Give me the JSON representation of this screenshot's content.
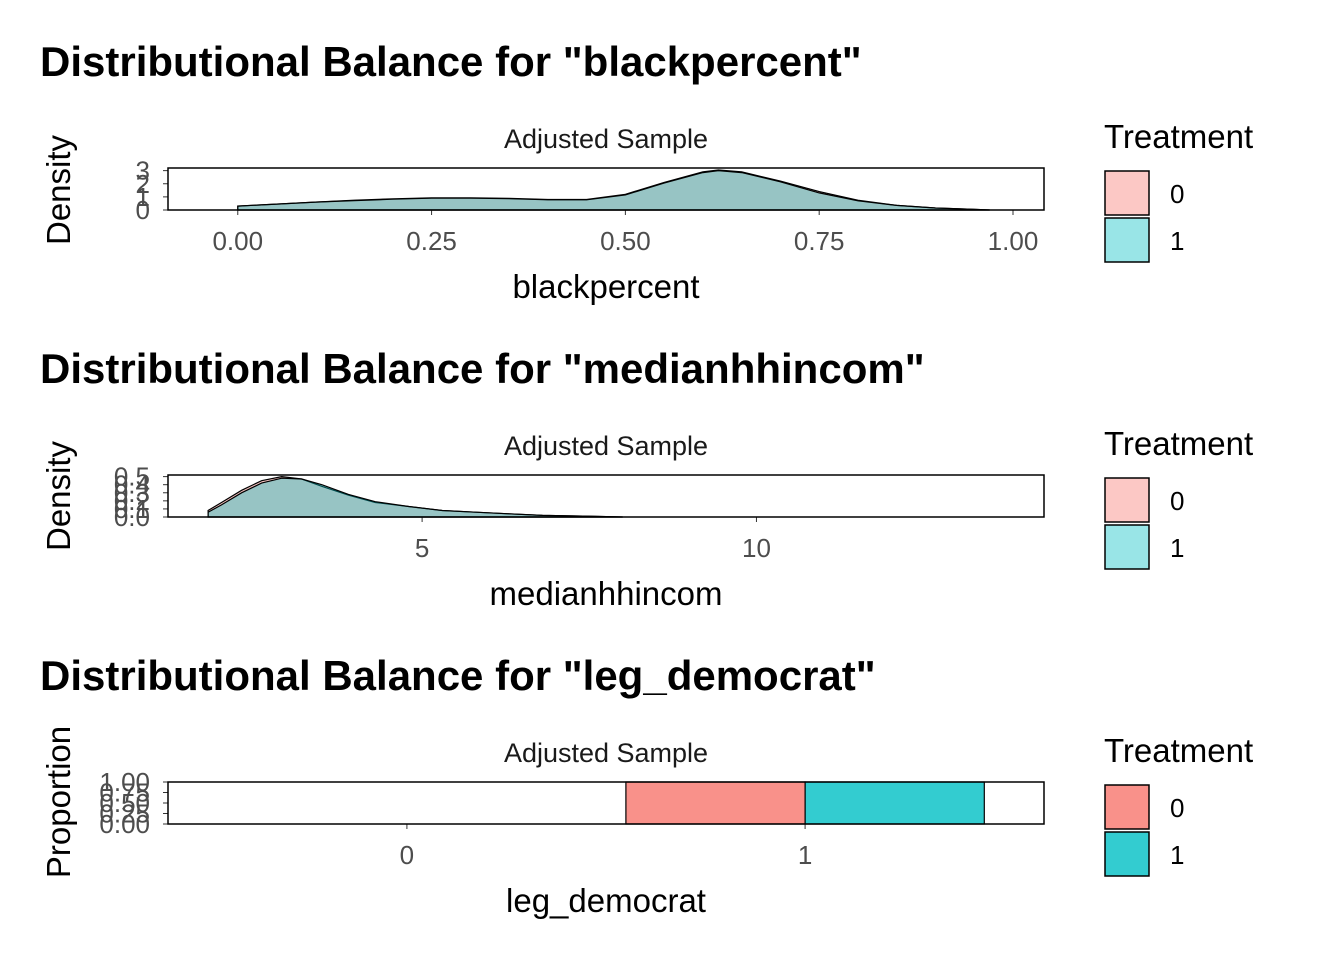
{
  "chart_data": [
    {
      "type": "area",
      "title": "Distributional Balance for \"blackpercent\"",
      "facet_label": "Adjusted Sample",
      "xlabel": "blackpercent",
      "ylabel": "Density",
      "xlim": [
        -0.09,
        1.04
      ],
      "ylim": [
        0,
        3.2
      ],
      "x_ticks": [
        0,
        0.25,
        0.5,
        0.75,
        1.0
      ],
      "x_tick_labels": [
        "0.00",
        "0.25",
        "0.50",
        "0.75",
        "1.00"
      ],
      "y_ticks": [
        0,
        1,
        2,
        3
      ],
      "y_tick_labels": [
        "0",
        "1",
        "2",
        "3"
      ],
      "legend": {
        "title": "Treatment",
        "position": "right",
        "entries": [
          "0",
          "1"
        ]
      },
      "series": [
        {
          "name": "0",
          "color": "#F8766D",
          "x": [
            0.0,
            0.05,
            0.1,
            0.15,
            0.2,
            0.25,
            0.3,
            0.35,
            0.4,
            0.45,
            0.5,
            0.55,
            0.6,
            0.62,
            0.65,
            0.7,
            0.75,
            0.8,
            0.85,
            0.9,
            0.95,
            0.97
          ],
          "y": [
            0.3,
            0.45,
            0.6,
            0.75,
            0.85,
            0.92,
            0.93,
            0.88,
            0.8,
            0.8,
            1.2,
            2.1,
            2.9,
            3.05,
            2.9,
            2.2,
            1.4,
            0.75,
            0.35,
            0.15,
            0.05,
            0.0
          ]
        },
        {
          "name": "1",
          "color": "#00BFC4",
          "x": [
            0.0,
            0.05,
            0.1,
            0.15,
            0.2,
            0.25,
            0.3,
            0.35,
            0.4,
            0.45,
            0.5,
            0.55,
            0.6,
            0.62,
            0.65,
            0.7,
            0.75,
            0.8,
            0.85,
            0.9,
            0.95,
            0.97
          ],
          "y": [
            0.3,
            0.45,
            0.6,
            0.72,
            0.82,
            0.9,
            0.9,
            0.86,
            0.78,
            0.78,
            1.15,
            2.05,
            2.85,
            3.0,
            2.85,
            2.15,
            1.3,
            0.7,
            0.35,
            0.15,
            0.05,
            0.0
          ]
        }
      ]
    },
    {
      "type": "area",
      "title": "Distributional Balance for \"medianhhincom\"",
      "facet_label": "Adjusted Sample",
      "xlabel": "medianhhincom",
      "ylabel": "Density",
      "xlim": [
        1.2,
        14.3
      ],
      "ylim": [
        0,
        0.52
      ],
      "x_ticks": [
        5,
        10
      ],
      "x_tick_labels": [
        "5",
        "10"
      ],
      "y_ticks": [
        0.0,
        0.1,
        0.2,
        0.3,
        0.4,
        0.5
      ],
      "y_tick_labels": [
        "0.0",
        "0.1",
        "0.2",
        "0.3",
        "0.4",
        "0.5"
      ],
      "legend": {
        "title": "Treatment",
        "position": "right",
        "entries": [
          "0",
          "1"
        ]
      },
      "series": [
        {
          "name": "0",
          "color": "#F8766D",
          "x": [
            1.8,
            2.0,
            2.3,
            2.6,
            2.9,
            3.2,
            3.5,
            3.9,
            4.3,
            4.8,
            5.3,
            5.8,
            6.3,
            6.8,
            7.5,
            8.0
          ],
          "y": [
            0.08,
            0.18,
            0.33,
            0.45,
            0.5,
            0.47,
            0.38,
            0.27,
            0.18,
            0.13,
            0.08,
            0.06,
            0.04,
            0.02,
            0.01,
            0.0
          ]
        },
        {
          "name": "1",
          "color": "#00BFC4",
          "x": [
            1.8,
            2.0,
            2.3,
            2.6,
            2.9,
            3.2,
            3.5,
            3.9,
            4.3,
            4.8,
            5.3,
            5.8,
            6.3,
            6.8,
            7.5,
            8.0
          ],
          "y": [
            0.06,
            0.15,
            0.3,
            0.42,
            0.48,
            0.47,
            0.4,
            0.28,
            0.19,
            0.13,
            0.08,
            0.06,
            0.04,
            0.02,
            0.01,
            0.0
          ]
        }
      ]
    },
    {
      "type": "bar",
      "title": "Distributional Balance for \"leg_democrat\"",
      "facet_label": "Adjusted Sample",
      "xlabel": "leg_democrat",
      "ylabel": "Proportion",
      "categories": [
        "0",
        "1"
      ],
      "ylim": [
        0,
        1.0
      ],
      "y_ticks": [
        0.0,
        0.25,
        0.5,
        0.75,
        1.0
      ],
      "y_tick_labels": [
        "0.00",
        "0.25",
        "0.50",
        "0.75",
        "1.00"
      ],
      "position": "dodge",
      "legend": {
        "title": "Treatment",
        "position": "right",
        "entries": [
          "0",
          "1"
        ]
      },
      "series": [
        {
          "name": "0",
          "color": "#F8766D",
          "values": [
            0.0,
            1.0
          ]
        },
        {
          "name": "1",
          "color": "#00BFC4",
          "values": [
            0.0,
            1.0
          ]
        }
      ]
    }
  ]
}
